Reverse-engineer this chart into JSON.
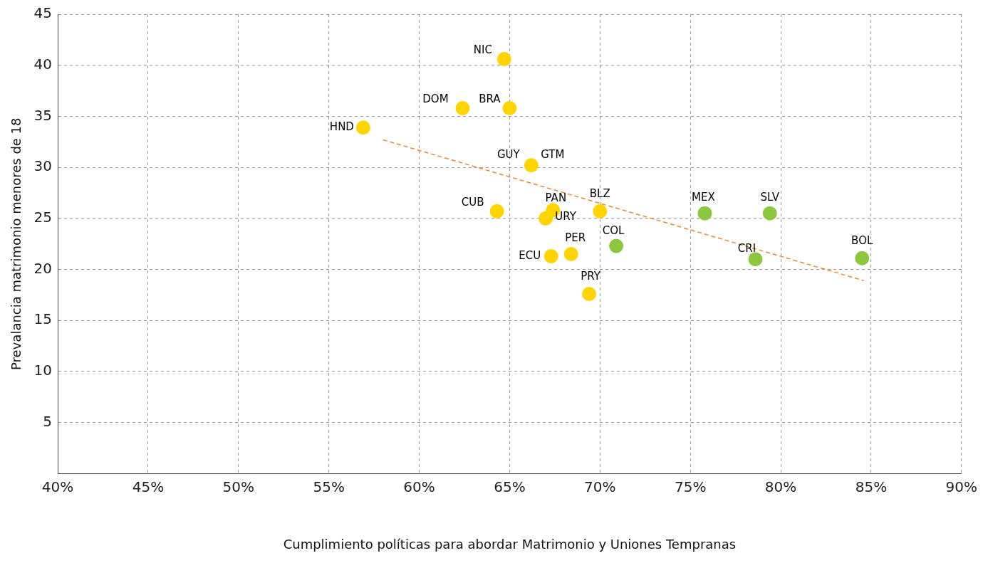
{
  "chart_data": {
    "type": "scatter",
    "xlabel": "Cumplimiento políticas para abordar Matrimonio y Uniones Tempranas",
    "ylabel": "Prevalancia matrimonio menores de 18",
    "xlim": [
      40,
      90
    ],
    "xticks": [
      {
        "value": 40,
        "label": "40%"
      },
      {
        "value": 45,
        "label": "45%"
      },
      {
        "value": 50,
        "label": "50%"
      },
      {
        "value": 55,
        "label": "55%"
      },
      {
        "value": 60,
        "label": "60%"
      },
      {
        "value": 65,
        "label": "65%"
      },
      {
        "value": 70,
        "label": "70%"
      },
      {
        "value": 75,
        "label": "75%"
      },
      {
        "value": 80,
        "label": "80%"
      },
      {
        "value": 85,
        "label": "85%"
      },
      {
        "value": 90,
        "label": "90%"
      }
    ],
    "ylim": [
      0,
      45
    ],
    "yticks": [
      5,
      10,
      15,
      20,
      25,
      30,
      35,
      40,
      45
    ],
    "grid": true,
    "legend": false,
    "marker": "circle",
    "series": [
      {
        "color": "#ffd400",
        "x": [
          64.7,
          62.4,
          65.0,
          56.9,
          66.2,
          64.3,
          67.0,
          67.4,
          70.0,
          67.3,
          68.4,
          69.4
        ],
        "values": [
          40.6,
          35.8,
          35.8,
          33.9,
          30.2,
          25.7,
          25.0,
          25.8,
          25.7,
          21.3,
          21.5,
          17.6
        ]
      },
      {
        "color": "#8dc63f",
        "x": [
          70.9,
          75.8,
          79.4,
          78.6,
          84.5
        ],
        "values": [
          22.3,
          25.5,
          25.5,
          21.0,
          21.1
        ]
      },
      {
        "type": "line",
        "color": "#e8892c",
        "line_style": "dashed",
        "marker": "none",
        "x": [
          58.0,
          84.6
        ],
        "values": [
          32.7,
          18.9
        ]
      }
    ],
    "annotations": [
      {
        "text": "NIC",
        "x": 64.7,
        "y": 40.6
      },
      {
        "text": "DOM",
        "x": 62.4,
        "y": 35.8
      },
      {
        "text": "BRA",
        "x": 65.0,
        "y": 35.8
      },
      {
        "text": "HND",
        "x": 56.9,
        "y": 33.9
      },
      {
        "text": "GUY",
        "x": 66.2,
        "y": 30.2
      },
      {
        "text": "GTM",
        "x": 66.2,
        "y": 30.2
      },
      {
        "text": "CUB",
        "x": 64.3,
        "y": 25.7
      },
      {
        "text": "URY",
        "x": 67.0,
        "y": 25.0
      },
      {
        "text": "PAN",
        "x": 67.4,
        "y": 25.8
      },
      {
        "text": "BLZ",
        "x": 70.0,
        "y": 25.7
      },
      {
        "text": "ECU",
        "x": 67.3,
        "y": 21.3
      },
      {
        "text": "PER",
        "x": 68.4,
        "y": 21.5
      },
      {
        "text": "PRY",
        "x": 69.4,
        "y": 17.6
      },
      {
        "text": "COL",
        "x": 70.9,
        "y": 22.3
      },
      {
        "text": "MEX",
        "x": 75.8,
        "y": 25.5
      },
      {
        "text": "SLV",
        "x": 79.4,
        "y": 25.5
      },
      {
        "text": "CRI",
        "x": 78.6,
        "y": 21.0
      },
      {
        "text": "BOL",
        "x": 84.5,
        "y": 21.1
      }
    ]
  }
}
